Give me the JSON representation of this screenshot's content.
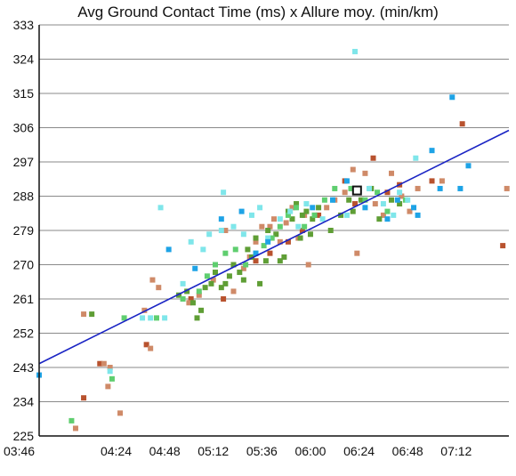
{
  "chart_data": {
    "type": "scatter",
    "title": "Avg Ground Contact Time (ms) x Allure moy. (min/km)",
    "xlabel": "",
    "ylabel": "",
    "x_unit": "min/km (mm:ss)",
    "xlim_seconds": [
      226,
      458
    ],
    "xlim": [
      "03:46",
      "07:38"
    ],
    "ylim": [
      225,
      333
    ],
    "y_ticks": [
      225,
      234,
      243,
      252,
      261,
      270,
      279,
      288,
      297,
      306,
      315,
      324,
      333
    ],
    "x_ticks": [
      "03:46",
      "04:24",
      "04:48",
      "05:12",
      "05:36",
      "06:00",
      "06:24",
      "06:48",
      "07:12"
    ],
    "x_ticks_seconds": [
      226,
      264,
      288,
      312,
      336,
      360,
      384,
      408,
      432
    ],
    "grid": "horizontal",
    "legend": "none",
    "trend_line": {
      "x_seconds": [
        226,
        458
      ],
      "y": [
        244.0,
        305.3
      ],
      "color": "#1a24c4"
    },
    "highlight_point": {
      "x_seconds": 383,
      "y": 289.5,
      "fill": "#ffffff",
      "stroke": "#111111"
    },
    "series": [
      {
        "color": "#b8522e",
        "points": [
          [
            248,
            235
          ],
          [
            256,
            244
          ],
          [
            279,
            249
          ],
          [
            301,
            261
          ],
          [
            317,
            261
          ],
          [
            333,
            271
          ],
          [
            340,
            273
          ],
          [
            349,
            276
          ],
          [
            356,
            279
          ],
          [
            364,
            283
          ],
          [
            377,
            292
          ],
          [
            382,
            286
          ],
          [
            391,
            298
          ],
          [
            398,
            289
          ],
          [
            404,
            291
          ],
          [
            420,
            292
          ],
          [
            435,
            307
          ],
          [
            455,
            275
          ]
        ]
      },
      {
        "color": "#cf8a68",
        "points": [
          [
            244,
            227
          ],
          [
            248,
            257
          ],
          [
            258,
            244
          ],
          [
            261,
            243
          ],
          [
            260,
            238
          ],
          [
            266,
            231
          ],
          [
            278,
            258
          ],
          [
            281,
            248
          ],
          [
            282,
            266
          ],
          [
            285,
            264
          ],
          [
            300,
            260
          ],
          [
            305,
            262
          ],
          [
            312,
            266
          ],
          [
            318,
            279
          ],
          [
            322,
            263
          ],
          [
            327,
            269
          ],
          [
            330,
            272
          ],
          [
            333,
            276
          ],
          [
            336,
            280
          ],
          [
            340,
            280
          ],
          [
            342,
            282
          ],
          [
            345,
            276
          ],
          [
            348,
            281
          ],
          [
            351,
            285
          ],
          [
            354,
            277
          ],
          [
            357,
            283
          ],
          [
            359,
            270
          ],
          [
            362,
            283
          ],
          [
            368,
            285
          ],
          [
            372,
            287
          ],
          [
            377,
            289
          ],
          [
            381,
            295
          ],
          [
            383,
            273
          ],
          [
            387,
            294
          ],
          [
            392,
            286
          ],
          [
            396,
            283
          ],
          [
            400,
            294
          ],
          [
            405,
            288
          ],
          [
            409,
            284
          ],
          [
            413,
            290
          ],
          [
            425,
            292
          ],
          [
            457,
            290
          ]
        ]
      },
      {
        "color": "#5f9e35",
        "points": [
          [
            252,
            257
          ],
          [
            295,
            262
          ],
          [
            299,
            263
          ],
          [
            302,
            260
          ],
          [
            304,
            256
          ],
          [
            306,
            258
          ],
          [
            308,
            264
          ],
          [
            311,
            265
          ],
          [
            313,
            268
          ],
          [
            316,
            264
          ],
          [
            318,
            265
          ],
          [
            320,
            267
          ],
          [
            322,
            270
          ],
          [
            325,
            268
          ],
          [
            327,
            266
          ],
          [
            329,
            274
          ],
          [
            331,
            272
          ],
          [
            333,
            277
          ],
          [
            335,
            265
          ],
          [
            338,
            271
          ],
          [
            339,
            279
          ],
          [
            343,
            278
          ],
          [
            345,
            271
          ],
          [
            347,
            272
          ],
          [
            349,
            284
          ],
          [
            351,
            282
          ],
          [
            353,
            286
          ],
          [
            355,
            277
          ],
          [
            356,
            283
          ],
          [
            358,
            284
          ],
          [
            360,
            278
          ],
          [
            361,
            282
          ],
          [
            364,
            285
          ],
          [
            370,
            279
          ],
          [
            375,
            283
          ],
          [
            379,
            287
          ],
          [
            381,
            284
          ],
          [
            385,
            287
          ],
          [
            390,
            290
          ],
          [
            394,
            282
          ],
          [
            400,
            287
          ],
          [
            404,
            286
          ]
        ]
      },
      {
        "color": "#5fce6f",
        "points": [
          [
            262,
            240
          ],
          [
            242,
            229
          ],
          [
            268,
            256
          ],
          [
            284,
            256
          ],
          [
            297,
            261
          ],
          [
            305,
            263
          ],
          [
            309,
            267
          ],
          [
            313,
            270
          ],
          [
            318,
            273
          ],
          [
            323,
            274
          ],
          [
            328,
            270
          ],
          [
            333,
            273
          ],
          [
            337,
            275
          ],
          [
            341,
            277
          ],
          [
            345,
            280
          ],
          [
            349,
            283
          ],
          [
            353,
            285
          ],
          [
            357,
            280
          ],
          [
            362,
            283
          ],
          [
            367,
            287
          ],
          [
            372,
            290
          ],
          [
            380,
            290
          ],
          [
            387,
            287
          ],
          [
            393,
            289
          ],
          [
            398,
            284
          ],
          [
            407,
            287
          ]
        ]
      },
      {
        "color": "#7fe6ea",
        "points": [
          [
            261,
            242
          ],
          [
            277,
            256
          ],
          [
            281,
            256
          ],
          [
            286,
            285
          ],
          [
            288,
            256
          ],
          [
            297,
            265
          ],
          [
            301,
            276
          ],
          [
            307,
            274
          ],
          [
            310,
            278
          ],
          [
            316,
            279
          ],
          [
            317,
            289
          ],
          [
            322,
            280
          ],
          [
            327,
            278
          ],
          [
            331,
            283
          ],
          [
            335,
            285
          ],
          [
            339,
            277
          ],
          [
            345,
            282
          ],
          [
            350,
            284
          ],
          [
            354,
            280
          ],
          [
            358,
            286
          ],
          [
            366,
            282
          ],
          [
            371,
            287
          ],
          [
            378,
            283
          ],
          [
            382,
            326
          ],
          [
            389,
            290
          ],
          [
            396,
            286
          ],
          [
            401,
            283
          ],
          [
            404,
            289
          ],
          [
            408,
            287
          ],
          [
            412,
            298
          ]
        ]
      },
      {
        "color": "#1ea3e6",
        "points": [
          [
            226,
            241
          ],
          [
            290,
            274
          ],
          [
            303,
            269
          ],
          [
            316,
            282
          ],
          [
            326,
            284
          ],
          [
            333,
            273
          ],
          [
            339,
            276
          ],
          [
            361,
            285
          ],
          [
            371,
            287
          ],
          [
            378,
            292
          ],
          [
            384,
            289
          ],
          [
            387,
            285
          ],
          [
            398,
            282
          ],
          [
            403,
            287
          ],
          [
            411,
            285
          ],
          [
            413,
            283
          ],
          [
            420,
            300
          ],
          [
            424,
            290
          ],
          [
            430,
            314
          ],
          [
            434,
            290
          ],
          [
            438,
            296
          ]
        ]
      }
    ]
  }
}
